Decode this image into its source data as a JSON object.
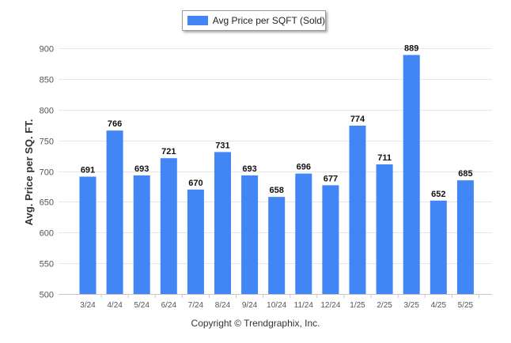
{
  "colors": {
    "bar": "#4285f4",
    "grid": "#e6e6e6",
    "axis_text": "#555555",
    "label_text": "#111111"
  },
  "legend": {
    "label": "Avg Price per SQFT (Sold)"
  },
  "footer": {
    "copyright": "Copyright © Trendgraphix, Inc."
  },
  "chart_data": {
    "type": "bar",
    "categories": [
      "3/24",
      "4/24",
      "5/24",
      "6/24",
      "7/24",
      "8/24",
      "9/24",
      "10/24",
      "11/24",
      "12/24",
      "1/25",
      "2/25",
      "3/25",
      "4/25",
      "5/25"
    ],
    "series": [
      {
        "name": "Avg Price per SQFT (Sold)",
        "values": [
          691,
          766,
          693,
          721,
          670,
          731,
          693,
          658,
          696,
          677,
          774,
          711,
          889,
          652,
          685
        ]
      }
    ],
    "ylabel": "Avg. Price per SQ. FT.",
    "xlabel": "",
    "ylim": [
      500,
      900
    ],
    "yticks": [
      500,
      550,
      600,
      650,
      700,
      750,
      800,
      850,
      900
    ],
    "grid": true,
    "legend_position": "top-center",
    "data_labels": true
  }
}
